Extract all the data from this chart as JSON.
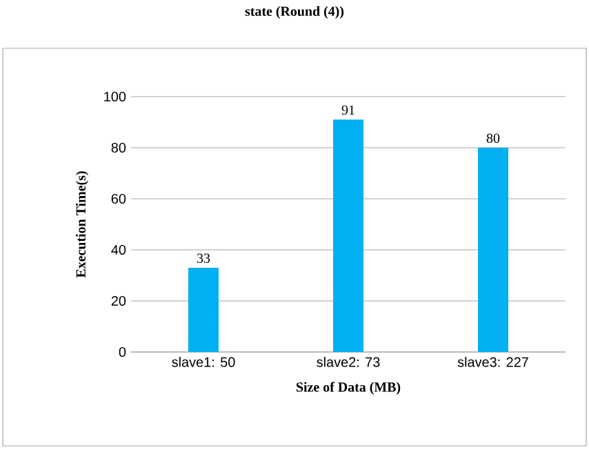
{
  "chart_data": {
    "type": "bar",
    "title": "state (Round (4))",
    "xlabel": "Size of Data (MB)",
    "ylabel": "Execution Time(s)",
    "categories": [
      "slave1: 50",
      "slave2: 73",
      "slave3: 227"
    ],
    "values": [
      33,
      91,
      80
    ],
    "color": "#00b0f0",
    "ylim": [
      0,
      100
    ],
    "yticks": [
      0,
      20,
      40,
      60,
      80,
      100
    ],
    "grid": "y",
    "data_labels": true
  }
}
